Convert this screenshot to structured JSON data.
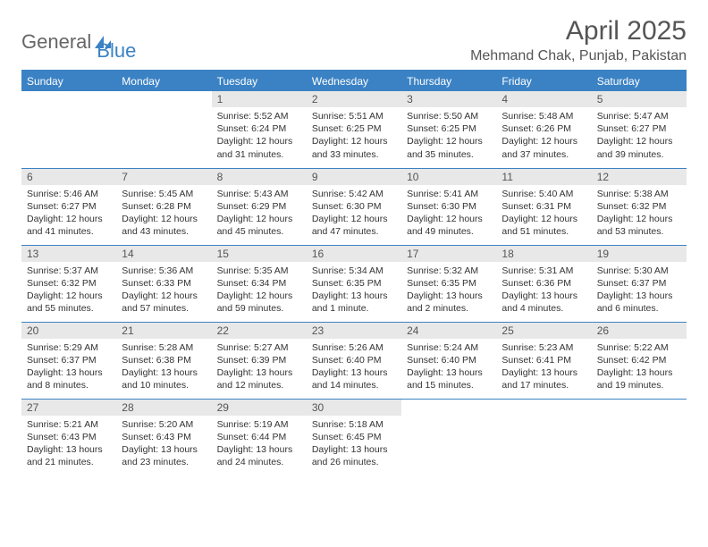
{
  "brand": {
    "part1": "General",
    "part2": "Blue"
  },
  "title": "April 2025",
  "location": "Mehmand Chak, Punjab, Pakistan",
  "colors": {
    "header_bg": "#3b82c4",
    "header_text": "#ffffff",
    "date_bar_bg": "#e8e8e8",
    "cell_border": "#3b82c4",
    "text": "#333333",
    "title_text": "#555555",
    "page_bg": "#ffffff"
  },
  "typography": {
    "title_fontsize": 30,
    "location_fontsize": 16,
    "header_fontsize": 12,
    "date_fontsize": 12,
    "body_fontsize": 10.5,
    "font_family": "Arial"
  },
  "day_headers": [
    "Sunday",
    "Monday",
    "Tuesday",
    "Wednesday",
    "Thursday",
    "Friday",
    "Saturday"
  ],
  "weeks": [
    [
      null,
      null,
      {
        "d": "1",
        "sr": "5:52 AM",
        "ss": "6:24 PM",
        "dl": "12 hours and 31 minutes."
      },
      {
        "d": "2",
        "sr": "5:51 AM",
        "ss": "6:25 PM",
        "dl": "12 hours and 33 minutes."
      },
      {
        "d": "3",
        "sr": "5:50 AM",
        "ss": "6:25 PM",
        "dl": "12 hours and 35 minutes."
      },
      {
        "d": "4",
        "sr": "5:48 AM",
        "ss": "6:26 PM",
        "dl": "12 hours and 37 minutes."
      },
      {
        "d": "5",
        "sr": "5:47 AM",
        "ss": "6:27 PM",
        "dl": "12 hours and 39 minutes."
      }
    ],
    [
      {
        "d": "6",
        "sr": "5:46 AM",
        "ss": "6:27 PM",
        "dl": "12 hours and 41 minutes."
      },
      {
        "d": "7",
        "sr": "5:45 AM",
        "ss": "6:28 PM",
        "dl": "12 hours and 43 minutes."
      },
      {
        "d": "8",
        "sr": "5:43 AM",
        "ss": "6:29 PM",
        "dl": "12 hours and 45 minutes."
      },
      {
        "d": "9",
        "sr": "5:42 AM",
        "ss": "6:30 PM",
        "dl": "12 hours and 47 minutes."
      },
      {
        "d": "10",
        "sr": "5:41 AM",
        "ss": "6:30 PM",
        "dl": "12 hours and 49 minutes."
      },
      {
        "d": "11",
        "sr": "5:40 AM",
        "ss": "6:31 PM",
        "dl": "12 hours and 51 minutes."
      },
      {
        "d": "12",
        "sr": "5:38 AM",
        "ss": "6:32 PM",
        "dl": "12 hours and 53 minutes."
      }
    ],
    [
      {
        "d": "13",
        "sr": "5:37 AM",
        "ss": "6:32 PM",
        "dl": "12 hours and 55 minutes."
      },
      {
        "d": "14",
        "sr": "5:36 AM",
        "ss": "6:33 PM",
        "dl": "12 hours and 57 minutes."
      },
      {
        "d": "15",
        "sr": "5:35 AM",
        "ss": "6:34 PM",
        "dl": "12 hours and 59 minutes."
      },
      {
        "d": "16",
        "sr": "5:34 AM",
        "ss": "6:35 PM",
        "dl": "13 hours and 1 minute."
      },
      {
        "d": "17",
        "sr": "5:32 AM",
        "ss": "6:35 PM",
        "dl": "13 hours and 2 minutes."
      },
      {
        "d": "18",
        "sr": "5:31 AM",
        "ss": "6:36 PM",
        "dl": "13 hours and 4 minutes."
      },
      {
        "d": "19",
        "sr": "5:30 AM",
        "ss": "6:37 PM",
        "dl": "13 hours and 6 minutes."
      }
    ],
    [
      {
        "d": "20",
        "sr": "5:29 AM",
        "ss": "6:37 PM",
        "dl": "13 hours and 8 minutes."
      },
      {
        "d": "21",
        "sr": "5:28 AM",
        "ss": "6:38 PM",
        "dl": "13 hours and 10 minutes."
      },
      {
        "d": "22",
        "sr": "5:27 AM",
        "ss": "6:39 PM",
        "dl": "13 hours and 12 minutes."
      },
      {
        "d": "23",
        "sr": "5:26 AM",
        "ss": "6:40 PM",
        "dl": "13 hours and 14 minutes."
      },
      {
        "d": "24",
        "sr": "5:24 AM",
        "ss": "6:40 PM",
        "dl": "13 hours and 15 minutes."
      },
      {
        "d": "25",
        "sr": "5:23 AM",
        "ss": "6:41 PM",
        "dl": "13 hours and 17 minutes."
      },
      {
        "d": "26",
        "sr": "5:22 AM",
        "ss": "6:42 PM",
        "dl": "13 hours and 19 minutes."
      }
    ],
    [
      {
        "d": "27",
        "sr": "5:21 AM",
        "ss": "6:43 PM",
        "dl": "13 hours and 21 minutes."
      },
      {
        "d": "28",
        "sr": "5:20 AM",
        "ss": "6:43 PM",
        "dl": "13 hours and 23 minutes."
      },
      {
        "d": "29",
        "sr": "5:19 AM",
        "ss": "6:44 PM",
        "dl": "13 hours and 24 minutes."
      },
      {
        "d": "30",
        "sr": "5:18 AM",
        "ss": "6:45 PM",
        "dl": "13 hours and 26 minutes."
      },
      null,
      null,
      null
    ]
  ],
  "labels": {
    "sunrise": "Sunrise:",
    "sunset": "Sunset:",
    "daylight": "Daylight:"
  }
}
